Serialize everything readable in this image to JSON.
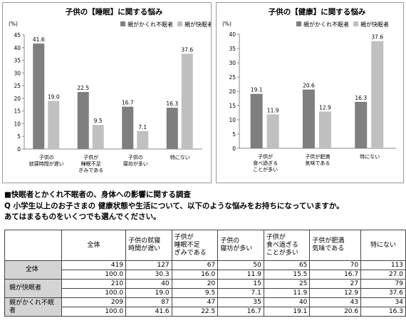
{
  "charts": [
    {
      "title": "子供の【睡眠】に関する悩み",
      "y_unit": "(%)",
      "legend": [
        "親がかくれ不眠者",
        "親が快眠者"
      ],
      "categories": [
        [
          "子供の",
          "就寝時間が遅い"
        ],
        [
          "子供が",
          "睡眠不足",
          "ぎみである"
        ],
        [
          "子供の",
          "寝坊が多い"
        ],
        [
          "特にない"
        ]
      ]
    },
    {
      "title": "子供の【健康】に関する悩み",
      "y_unit": "(%)",
      "legend": [
        "親がかくれ不眠者",
        "親が快眠者"
      ],
      "categories": [
        [
          "子供が",
          "食べ過ぎる",
          "ことが多い"
        ],
        [
          "子供が肥満",
          "気味である"
        ],
        [
          "特にない"
        ]
      ]
    }
  ],
  "chart_data": [
    {
      "type": "bar",
      "title": "子供の【睡眠】に関する悩み",
      "categories": [
        "子供の就寝時間が遅い",
        "子供が睡眠不足ぎみである",
        "子供の寝坊が多い",
        "特にない"
      ],
      "series": [
        {
          "name": "親がかくれ不眠者",
          "values": [
            41.6,
            22.5,
            16.7,
            16.3
          ]
        },
        {
          "name": "親が快眠者",
          "values": [
            19.0,
            9.5,
            7.1,
            37.6
          ]
        }
      ],
      "ylabel": "(%)",
      "ylim": [
        0,
        45
      ],
      "yticks": [
        0,
        5,
        10,
        15,
        20,
        25,
        30,
        35,
        40,
        45
      ],
      "grid": false,
      "legend_position": "top-right",
      "colors": [
        "#7f7f7f",
        "#c0c0c0"
      ]
    },
    {
      "type": "bar",
      "title": "子供の【健康】に関する悩み",
      "categories": [
        "子供が食べ過ぎることが多い",
        "子供が肥満気味である",
        "特にない"
      ],
      "series": [
        {
          "name": "親がかくれ不眠者",
          "values": [
            19.1,
            20.6,
            16.3
          ]
        },
        {
          "name": "親が快眠者",
          "values": [
            11.9,
            12.9,
            37.6
          ]
        }
      ],
      "ylabel": "(%)",
      "ylim": [
        0,
        40
      ],
      "yticks": [
        0,
        5,
        10,
        15,
        20,
        25,
        30,
        35,
        40
      ],
      "grid": false,
      "legend_position": "top-right",
      "colors": [
        "#7f7f7f",
        "#c0c0c0"
      ]
    }
  ],
  "survey": {
    "heading": "■快眠者とかくれ不眠者の、身体への影響に関する調査",
    "question_1": "Q 小学生以上のお子さまの 健康状態や生活について、以下のような悩みをお持ちになっていますか。",
    "question_2": "あてはまるものをいくつでも選んでください。"
  },
  "table": {
    "columns": [
      "全体",
      "子供の就寝時間が遅い",
      "子供が睡眠不足ぎみである",
      "子供の寝坊が多い",
      "子供が食べ過ぎることが多い",
      "子供が肥満気味である",
      "特にない"
    ],
    "column_lines": [
      [
        "全体"
      ],
      [
        "子供の就寝",
        "時間が遅い"
      ],
      [
        "子供が",
        "睡眠不足",
        "ぎみである"
      ],
      [
        "子供の",
        "寝坊が多い"
      ],
      [
        "子供が",
        "食べ過ぎる",
        "ことが多い"
      ],
      [
        "子供が肥満",
        "気味である"
      ],
      [
        "特にない"
      ]
    ],
    "rows": [
      {
        "label": "全体",
        "counts": [
          "419",
          "127",
          "67",
          "50",
          "65",
          "70",
          "113"
        ],
        "percents": [
          "100.0",
          "30.3",
          "16.0",
          "11.9",
          "15.5",
          "16.7",
          "27.0"
        ]
      },
      {
        "label": "親が快眠者",
        "counts": [
          "210",
          "40",
          "20",
          "15",
          "25",
          "27",
          "79"
        ],
        "percents": [
          "100.0",
          "19.0",
          "9.5",
          "7.1",
          "11.9",
          "12.9",
          "37.6"
        ]
      },
      {
        "label": "親がかくれ不眠者",
        "counts": [
          "209",
          "87",
          "47",
          "35",
          "40",
          "43",
          "34"
        ],
        "percents": [
          "100.0",
          "41.6",
          "22.5",
          "16.7",
          "19.1",
          "20.6",
          "16.3"
        ]
      }
    ]
  }
}
